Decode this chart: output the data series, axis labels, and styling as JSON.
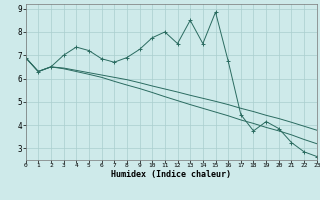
{
  "xlabel": "Humidex (Indice chaleur)",
  "xlim": [
    0,
    23
  ],
  "ylim": [
    2.5,
    9.2
  ],
  "yticks": [
    3,
    4,
    5,
    6,
    7,
    8,
    9
  ],
  "xticks": [
    0,
    1,
    2,
    3,
    4,
    5,
    6,
    7,
    8,
    9,
    10,
    11,
    12,
    13,
    14,
    15,
    16,
    17,
    18,
    19,
    20,
    21,
    22,
    23
  ],
  "bg_color": "#ceeaea",
  "grid_color": "#aacece",
  "line_color": "#2a6b60",
  "line1_x": [
    0,
    1,
    2,
    3,
    4,
    5,
    6,
    7,
    8,
    9,
    10,
    11,
    12,
    13,
    14,
    15,
    16,
    17,
    18,
    19,
    20,
    21,
    22,
    23
  ],
  "line1_y": [
    6.9,
    6.3,
    6.5,
    7.0,
    7.35,
    7.2,
    6.85,
    6.7,
    6.9,
    7.25,
    7.75,
    8.0,
    7.5,
    8.5,
    7.5,
    8.85,
    6.75,
    4.45,
    3.75,
    4.15,
    3.85,
    3.25,
    2.85,
    2.65
  ],
  "line2_x": [
    0,
    1,
    2,
    3,
    4,
    5,
    6,
    7,
    8,
    9,
    10,
    11,
    12,
    13,
    14,
    15,
    16,
    17,
    18,
    19,
    20,
    21,
    22,
    23
  ],
  "line2_y": [
    6.9,
    6.3,
    6.5,
    6.45,
    6.35,
    6.25,
    6.15,
    6.05,
    5.95,
    5.82,
    5.68,
    5.55,
    5.42,
    5.28,
    5.15,
    5.02,
    4.88,
    4.72,
    4.58,
    4.42,
    4.28,
    4.12,
    3.95,
    3.78
  ],
  "line3_x": [
    0,
    1,
    2,
    3,
    4,
    5,
    6,
    7,
    8,
    9,
    10,
    11,
    12,
    13,
    14,
    15,
    16,
    17,
    18,
    19,
    20,
    21,
    22,
    23
  ],
  "line3_y": [
    6.9,
    6.3,
    6.5,
    6.42,
    6.3,
    6.18,
    6.05,
    5.88,
    5.72,
    5.57,
    5.4,
    5.22,
    5.05,
    4.88,
    4.72,
    4.56,
    4.4,
    4.22,
    4.07,
    3.9,
    3.75,
    3.58,
    3.38,
    3.2
  ]
}
